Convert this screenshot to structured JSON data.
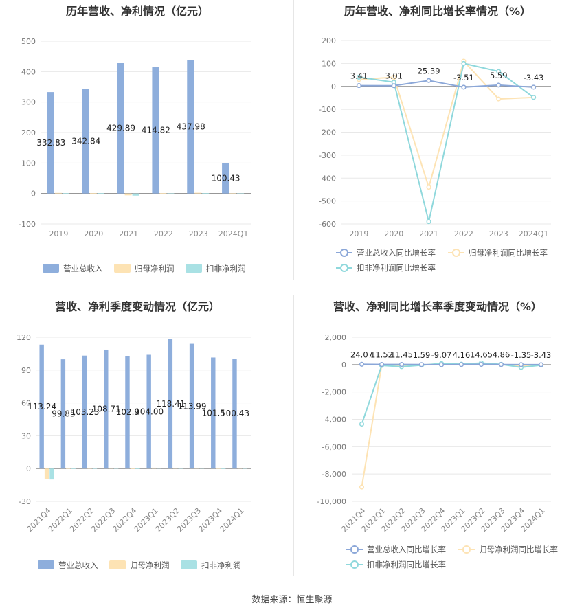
{
  "footer": {
    "source": "数据来源：恒生聚源"
  },
  "colors": {
    "revenue": "#8eaedc",
    "net_profit": "#fde3b4",
    "deducted_profit": "#a9e1e4",
    "rev_growth": "#8ba7d8",
    "np_growth": "#fde3b4",
    "dp_growth": "#8fd8dc"
  },
  "chart_data": [
    {
      "id": "annual-bars",
      "type": "bar",
      "title": "历年营收、净利情况（亿元）",
      "categories": [
        "2019",
        "2020",
        "2021",
        "2022",
        "2023",
        "2024Q1"
      ],
      "series": [
        {
          "name": "营业总收入",
          "values": [
            332.83,
            342.84,
            429.89,
            414.82,
            437.98,
            100.43
          ]
        },
        {
          "name": "归母净利润",
          "values": [
            2.0,
            1.5,
            -6.0,
            1.0,
            2.5,
            0.5
          ]
        },
        {
          "name": "扣非净利润",
          "values": [
            1.0,
            1.2,
            -7.0,
            0.5,
            1.5,
            0.4
          ]
        }
      ],
      "data_labels": [
        "332.83",
        "342.84",
        "429.89",
        "414.82",
        "437.98",
        "100.43"
      ],
      "yticks": [
        "500",
        "400",
        "300",
        "200",
        "100",
        "0",
        "-100"
      ],
      "ylim": [
        -100,
        500
      ],
      "legend_position": "bottom"
    },
    {
      "id": "annual-growth",
      "type": "line",
      "title": "历年营收、净利同比增长率情况（%）",
      "categories": [
        "2019",
        "2020",
        "2021",
        "2022",
        "2023",
        "2024Q1"
      ],
      "series": [
        {
          "name": "营业总收入同比增长率",
          "values": [
            3.41,
            3.01,
            25.39,
            -3.51,
            5.59,
            -3.43
          ]
        },
        {
          "name": "归母净利润同比增长率",
          "values": [
            30,
            40,
            -440,
            110,
            -55,
            -48
          ]
        },
        {
          "name": "扣非净利润同比增长率",
          "values": [
            40,
            18,
            -590,
            100,
            65,
            -48
          ]
        }
      ],
      "data_labels": [
        "3.41",
        "3.01",
        "25.39",
        "-3.51",
        "5.59",
        "-3.43"
      ],
      "yticks": [
        "200",
        "100",
        "0",
        "-100",
        "-200",
        "-300",
        "-400",
        "-500",
        "-600"
      ],
      "ylim": [
        -600,
        200
      ],
      "legend_position": "bottom"
    },
    {
      "id": "quarterly-bars",
      "type": "bar",
      "title": "营收、净利季度变动情况（亿元）",
      "categories": [
        "2021Q4",
        "2022Q1",
        "2022Q2",
        "2022Q3",
        "2022Q4",
        "2023Q1",
        "2023Q2",
        "2023Q3",
        "2023Q4",
        "2024Q1"
      ],
      "series": [
        {
          "name": "营业总收入",
          "values": [
            113.24,
            99.85,
            103.23,
            108.71,
            102.9,
            104.0,
            118.41,
            113.99,
            101.5,
            100.43
          ]
        },
        {
          "name": "归母净利润",
          "values": [
            -9.5,
            0.3,
            0.4,
            0.5,
            0.2,
            0.8,
            0.5,
            0.6,
            0.3,
            0.5
          ]
        },
        {
          "name": "扣非净利润",
          "values": [
            -10.0,
            0.2,
            0.3,
            0.4,
            0.1,
            0.6,
            0.4,
            0.5,
            0.2,
            0.4
          ]
        }
      ],
      "data_labels": [
        "113.24",
        "99.85",
        "103.23",
        "108.71",
        "102.9",
        "104.00",
        "118.41",
        "113.99",
        "101.5",
        "100.43"
      ],
      "yticks": [
        "120",
        "90",
        "60",
        "30",
        "0",
        "-30"
      ],
      "ylim": [
        -30,
        120
      ],
      "legend_position": "bottom"
    },
    {
      "id": "quarterly-growth",
      "type": "line",
      "title": "营收、净利同比增长率季度变动情况（%）",
      "categories": [
        "2021Q4",
        "2022Q1",
        "2022Q2",
        "2022Q3",
        "2022Q4",
        "2023Q1",
        "2023Q2",
        "2023Q3",
        "2023Q4",
        "2024Q1"
      ],
      "series": [
        {
          "name": "营业总收入同比增长率",
          "values": [
            24.07,
            11.52,
            11.45,
            1.59,
            -9.07,
            4.16,
            14.65,
            4.86,
            -1.35,
            -3.43
          ]
        },
        {
          "name": "归母净利润同比增长率",
          "values": [
            -8950,
            -50,
            -80,
            -30,
            60,
            20,
            80,
            10,
            -100,
            -40
          ]
        },
        {
          "name": "扣非净利润同比增长率",
          "values": [
            -4350,
            -60,
            -150,
            -40,
            80,
            30,
            120,
            20,
            -200,
            -40
          ]
        }
      ],
      "data_labels": [
        "24.07",
        "11.52",
        "11.45",
        "1.59",
        "-9.07",
        "4.16",
        "14.65",
        "4.86",
        "-1.35",
        "-3.43"
      ],
      "yticks": [
        "2,000",
        "0",
        "-2,000",
        "-4,000",
        "-6,000",
        "-8,000",
        "-10,000"
      ],
      "ylim": [
        -10000,
        2000
      ],
      "legend_position": "bottom"
    }
  ]
}
